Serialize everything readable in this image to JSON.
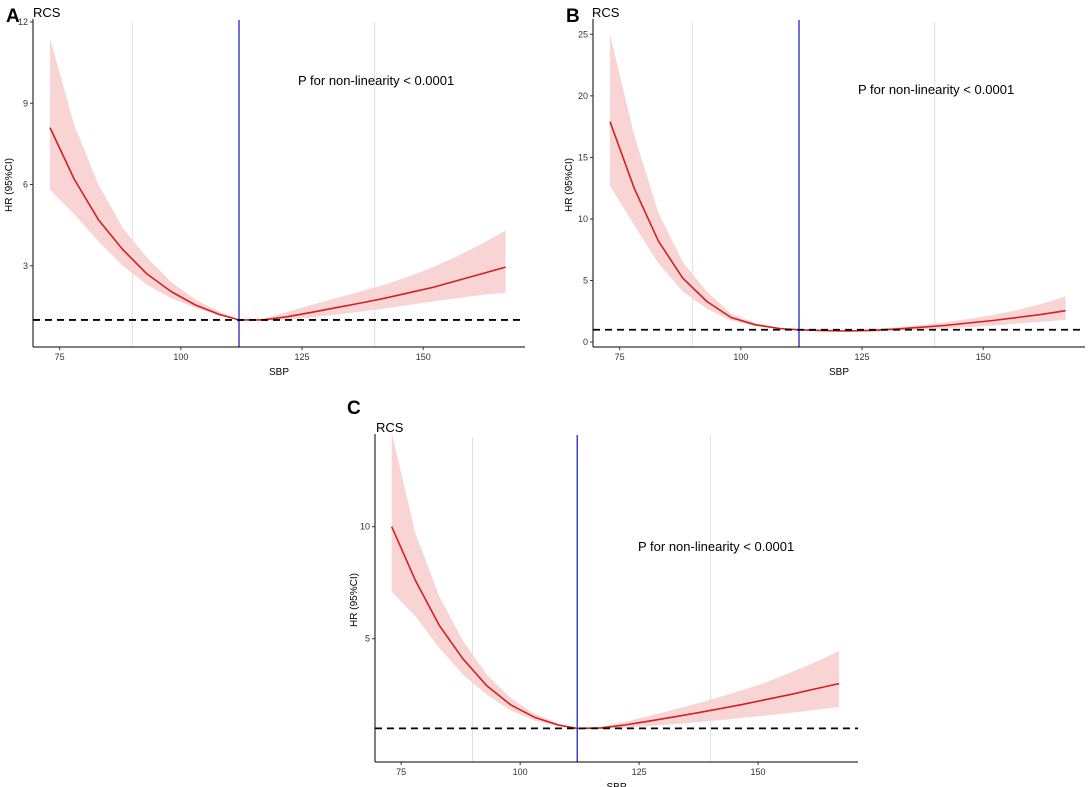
{
  "chart_data": [
    {
      "type": "line",
      "panel": "A",
      "title": "RCS",
      "xlabel": "SBP",
      "ylabel": "HR (95%CI)",
      "annotation": "P for non-linearity < 0.0001",
      "xlim": [
        69.5,
        171
      ],
      "ylim": [
        0.0,
        12.0
      ],
      "xticks": [
        75,
        100,
        125,
        150
      ],
      "yticks": [
        3,
        6,
        9,
        12
      ],
      "gridlines_x": [
        90,
        140
      ],
      "vline_x": 112,
      "reference_hr": 1,
      "series": [
        {
          "name": "HR",
          "x": [
            73,
            78,
            83,
            88,
            93,
            98,
            103,
            108,
            112,
            117,
            122,
            127,
            132,
            137,
            142,
            147,
            152,
            157,
            162,
            167
          ],
          "y": [
            8.1,
            6.2,
            4.7,
            3.6,
            2.7,
            2.05,
            1.55,
            1.2,
            1.0,
            1.0,
            1.12,
            1.28,
            1.45,
            1.62,
            1.8,
            2.0,
            2.2,
            2.45,
            2.7,
            2.95
          ]
        },
        {
          "name": "CI lower",
          "x": [
            73,
            78,
            83,
            88,
            93,
            98,
            103,
            108,
            112,
            117,
            122,
            127,
            132,
            137,
            142,
            147,
            152,
            157,
            162,
            167
          ],
          "y": [
            5.8,
            4.9,
            3.9,
            3.0,
            2.3,
            1.8,
            1.45,
            1.15,
            1.0,
            0.98,
            1.02,
            1.1,
            1.2,
            1.3,
            1.42,
            1.55,
            1.68,
            1.8,
            1.92,
            2.0
          ]
        },
        {
          "name": "CI upper",
          "x": [
            73,
            78,
            83,
            88,
            93,
            98,
            103,
            108,
            112,
            117,
            122,
            127,
            132,
            137,
            142,
            147,
            152,
            157,
            162,
            167
          ],
          "y": [
            11.4,
            8.2,
            6.0,
            4.4,
            3.3,
            2.4,
            1.75,
            1.3,
            1.0,
            1.04,
            1.3,
            1.55,
            1.8,
            2.05,
            2.3,
            2.6,
            2.95,
            3.35,
            3.8,
            4.3
          ]
        }
      ]
    },
    {
      "type": "line",
      "panel": "B",
      "title": "RCS",
      "xlabel": "SBP",
      "ylabel": "HR (95%CI)",
      "annotation": "P for non-linearity < 0.0001",
      "xlim": [
        69.5,
        171
      ],
      "ylim": [
        -0.4,
        26
      ],
      "xticks": [
        75,
        100,
        125,
        150
      ],
      "yticks": [
        0,
        5,
        10,
        15,
        20,
        25
      ],
      "gridlines_x": [
        90,
        140
      ],
      "vline_x": 112,
      "reference_hr": 1,
      "series": [
        {
          "name": "HR",
          "x": [
            73,
            78,
            83,
            88,
            93,
            98,
            103,
            108,
            112,
            117,
            122,
            127,
            132,
            137,
            142,
            147,
            152,
            157,
            162,
            167
          ],
          "y": [
            17.9,
            12.5,
            8.2,
            5.2,
            3.3,
            2.0,
            1.4,
            1.1,
            1.0,
            0.93,
            0.9,
            0.95,
            1.05,
            1.2,
            1.35,
            1.55,
            1.75,
            2.0,
            2.25,
            2.55
          ]
        },
        {
          "name": "CI lower",
          "x": [
            73,
            78,
            83,
            88,
            93,
            98,
            103,
            108,
            112,
            117,
            122,
            127,
            132,
            137,
            142,
            147,
            152,
            157,
            162,
            167
          ],
          "y": [
            12.7,
            9.5,
            6.4,
            4.1,
            2.7,
            1.75,
            1.3,
            1.05,
            1.0,
            0.9,
            0.85,
            0.87,
            0.93,
            1.0,
            1.1,
            1.22,
            1.35,
            1.5,
            1.65,
            1.8
          ]
        },
        {
          "name": "CI upper",
          "x": [
            73,
            78,
            83,
            88,
            93,
            98,
            103,
            108,
            112,
            117,
            122,
            127,
            132,
            137,
            142,
            147,
            152,
            157,
            162,
            167
          ],
          "y": [
            25.0,
            16.8,
            10.5,
            6.5,
            4.1,
            2.3,
            1.55,
            1.15,
            1.0,
            0.97,
            0.96,
            1.05,
            1.18,
            1.38,
            1.6,
            1.88,
            2.2,
            2.6,
            3.1,
            3.7
          ]
        }
      ]
    },
    {
      "type": "line",
      "panel": "C",
      "title": "RCS",
      "xlabel": "SBP",
      "ylabel": "HR (95%CI)",
      "annotation": "P for non-linearity < 0.0001",
      "xlim": [
        69.5,
        171
      ],
      "ylim": [
        -0.5,
        14.0
      ],
      "xticks": [
        75,
        100,
        125,
        150
      ],
      "yticks": [
        5,
        10
      ],
      "gridlines_x": [
        90,
        140
      ],
      "vline_x": 112,
      "reference_hr": 1,
      "series": [
        {
          "name": "HR",
          "x": [
            73,
            78,
            83,
            88,
            93,
            98,
            103,
            108,
            112,
            117,
            122,
            127,
            132,
            137,
            142,
            147,
            152,
            157,
            162,
            167
          ],
          "y": [
            10.0,
            7.6,
            5.6,
            4.1,
            2.9,
            2.05,
            1.5,
            1.15,
            1.0,
            1.02,
            1.15,
            1.32,
            1.5,
            1.68,
            1.88,
            2.08,
            2.3,
            2.52,
            2.76,
            3.0
          ]
        },
        {
          "name": "CI lower",
          "x": [
            73,
            78,
            83,
            88,
            93,
            98,
            103,
            108,
            112,
            117,
            122,
            127,
            132,
            137,
            142,
            147,
            152,
            157,
            162,
            167
          ],
          "y": [
            7.1,
            6.0,
            4.6,
            3.4,
            2.5,
            1.8,
            1.35,
            1.1,
            1.0,
            0.98,
            1.03,
            1.1,
            1.18,
            1.27,
            1.37,
            1.47,
            1.58,
            1.7,
            1.82,
            1.95
          ]
        },
        {
          "name": "CI upper",
          "x": [
            73,
            78,
            83,
            88,
            93,
            98,
            103,
            108,
            112,
            117,
            122,
            127,
            132,
            137,
            142,
            147,
            152,
            157,
            162,
            167
          ],
          "y": [
            14.2,
            9.7,
            6.9,
            4.9,
            3.4,
            2.35,
            1.65,
            1.22,
            1.0,
            1.06,
            1.3,
            1.55,
            1.82,
            2.1,
            2.4,
            2.72,
            3.08,
            3.5,
            3.95,
            4.45
          ]
        }
      ]
    }
  ],
  "colors": {
    "line": "#d42020",
    "band": "#f9d4d4",
    "vline": "#3333cc",
    "refline": "#000000",
    "grid": "#e0e0e0"
  }
}
